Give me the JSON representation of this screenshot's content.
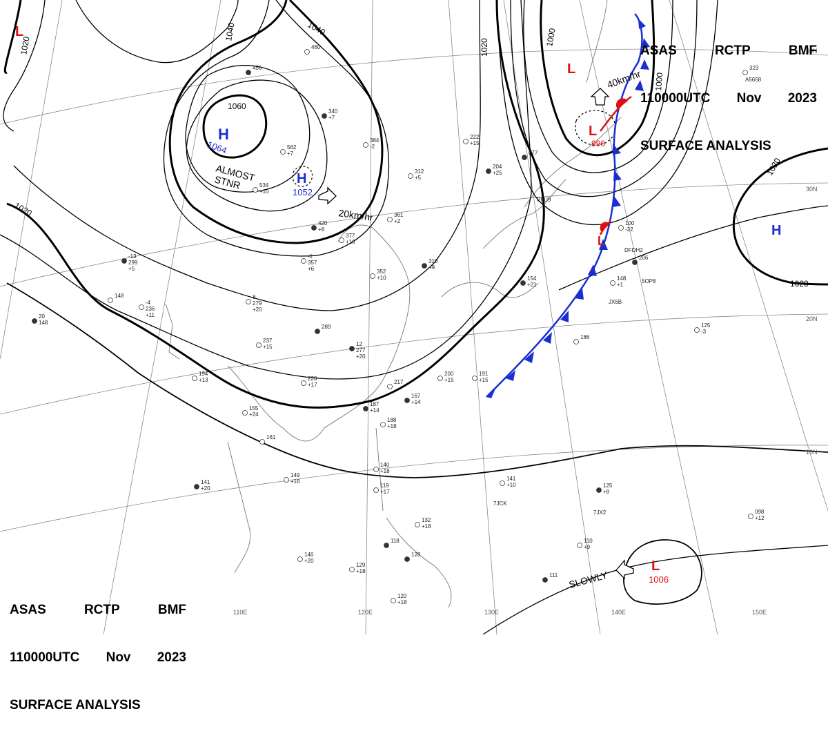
{
  "header": {
    "line1": [
      "ASAS",
      "RCTP",
      "BMF"
    ],
    "line2": [
      "110000UTC",
      "Nov",
      "2023"
    ],
    "line3": "SURFACE ANALYSIS"
  },
  "colors": {
    "high": "#1a2fd1",
    "low": "#e01010",
    "cold_front": "#1a2fd1",
    "warm_front": "#e01010",
    "isobar": "#000000",
    "grid": "#888888",
    "coast": "#777777"
  },
  "systems": {
    "high_main": {
      "letter": "H",
      "value": "1064"
    },
    "high_sub": {
      "letter": "H",
      "value": "1052"
    },
    "high_pacific": {
      "letter": "H"
    },
    "low_nw": {
      "letter": "L"
    },
    "low_north": {
      "letter": "L"
    },
    "low_center": {
      "letter": "L",
      "value": "996"
    },
    "low_front": {
      "letter": "L"
    },
    "low_south": {
      "letter": "L",
      "value": "1006"
    }
  },
  "motion": {
    "almost_stnr": "ALMOST\nSTNR",
    "speed_20": "20km/hr",
    "speed_40": "40km/hr",
    "slowly": "SLOWLY"
  },
  "isobar_labels": [
    "1020",
    "1040",
    "1040",
    "1060",
    "1020",
    "1000",
    "1000",
    "1020",
    "1020",
    "1020"
  ],
  "lat_labels": [
    "40N",
    "30N",
    "20N",
    "10N"
  ],
  "lon_labels": [
    "110E",
    "120E",
    "130E",
    "140E",
    "150E"
  ],
  "stations": [
    "-13 299 +5",
    "-4 236 +11",
    "148",
    "20 148",
    "-1 357 +6",
    "8 279 +20",
    "289",
    "237 +15",
    "194 +13",
    "12 277 +20",
    "228 +17",
    "217",
    "167 +14",
    "155 +24",
    "161",
    "187 +14",
    "188 +18",
    "149 +16",
    "141 +20",
    "140 +18",
    "119 +17",
    "118",
    "146 +20",
    "129 +18",
    "128",
    "132 +18",
    "120 +18",
    "310 +9",
    "352 +10",
    "377 +10",
    "420 +8",
    "361 +2",
    "312 +5",
    "340 +7",
    "384 -2",
    "222 +15",
    "204 +25",
    "200 +15",
    "191 +15",
    "154 +21",
    "186",
    "125 -3",
    "206",
    "148 +1",
    "100 -22",
    "077",
    "323",
    "098 +12",
    "125 +8",
    "141 +10",
    "110 +9",
    "111",
    "562 +7",
    "534 +10",
    "456",
    "460"
  ],
  "station_ids": [
    "A5658",
    "DFDH2",
    "JX6B",
    "5OP8",
    "7JCK",
    "PFU9",
    "7JX2"
  ]
}
